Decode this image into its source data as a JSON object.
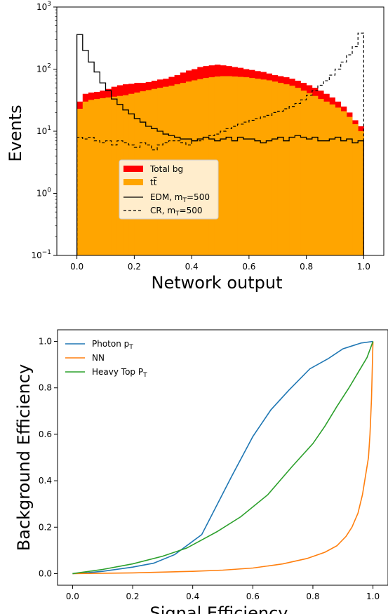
{
  "chart_data": [
    {
      "type": "histogram",
      "yscale": "log",
      "xlabel": "Network output",
      "ylabel": "Events",
      "xlim": [
        -0.07,
        1.07
      ],
      "ylim": [
        0.1,
        1000
      ],
      "x_ticks": [
        "0.0",
        "0.2",
        "0.4",
        "0.6",
        "0.8",
        "1.0"
      ],
      "y_ticks": [
        {
          "base": "10",
          "exp": "−1"
        },
        {
          "base": "10",
          "exp": "0"
        },
        {
          "base": "10",
          "exp": "1"
        },
        {
          "base": "10",
          "exp": "2"
        },
        {
          "base": "10",
          "exp": "3"
        }
      ],
      "bins": {
        "start": 0.0,
        "end": 1.0,
        "count": 50
      },
      "legend": {
        "position": "center-left",
        "entries": [
          {
            "kind": "patch",
            "color": "#ff0000",
            "label": "Total bg"
          },
          {
            "kind": "patch",
            "color": "#ffa500",
            "label_main": "t",
            "label_bar": "t"
          },
          {
            "kind": "line",
            "dash": "solid",
            "label_main": "EDM, m",
            "label_sub": "T",
            "label_end": "=500"
          },
          {
            "kind": "line",
            "dash": "dashed",
            "label_main": "CR, m",
            "label_sub": "T",
            "label_end": "=500"
          }
        ]
      },
      "series": [
        {
          "name": "Total bg",
          "color": "#ff0000",
          "values": [
            30,
            40,
            42,
            43,
            45,
            48,
            52,
            55,
            57,
            58,
            60,
            60,
            62,
            65,
            68,
            70,
            75,
            80,
            88,
            95,
            100,
            108,
            112,
            115,
            118,
            115,
            112,
            108,
            105,
            100,
            97,
            93,
            90,
            85,
            80,
            77,
            74,
            70,
            65,
            60,
            55,
            50,
            45,
            40,
            35,
            30,
            25,
            20,
            15,
            12
          ]
        },
        {
          "name": "tt̄",
          "color": "#ffa500",
          "values": [
            23,
            30,
            32,
            33,
            34,
            35,
            36,
            37,
            38,
            40,
            42,
            44,
            46,
            48,
            50,
            52,
            54,
            57,
            60,
            63,
            66,
            69,
            72,
            74,
            76,
            77,
            77,
            76,
            75,
            74,
            72,
            70,
            68,
            66,
            63,
            60,
            57,
            54,
            50,
            45,
            41,
            37,
            33,
            30,
            27,
            24,
            21,
            17,
            13,
            10
          ]
        },
        {
          "name": "EDM, mT=500",
          "color": "#000000",
          "dash": "solid",
          "values": [
            360,
            200,
            130,
            90,
            60,
            45,
            33,
            27,
            22,
            19,
            16,
            14,
            12,
            11,
            10,
            9,
            8.5,
            8,
            7.5,
            7.5,
            7,
            7.5,
            8,
            7.5,
            7,
            7.5,
            8,
            7,
            8,
            7.5,
            7.5,
            7,
            6.5,
            7,
            7.5,
            8,
            7,
            8,
            8.5,
            8,
            7.5,
            8,
            7,
            7,
            7.5,
            8,
            7,
            7.5,
            6.5,
            7
          ]
        },
        {
          "name": "CR, mT=500",
          "color": "#000000",
          "dash": "dashed",
          "values": [
            8,
            7.5,
            8,
            7,
            6.5,
            7,
            6,
            7,
            6.5,
            6,
            5.5,
            6.5,
            6,
            5,
            6,
            6.5,
            7,
            7,
            6.5,
            6,
            7,
            7,
            8,
            8.5,
            9,
            10,
            11,
            12,
            13,
            14,
            15,
            16,
            17,
            18,
            20,
            21,
            23,
            25,
            28,
            32,
            38,
            45,
            55,
            65,
            80,
            100,
            130,
            170,
            230,
            380
          ]
        }
      ]
    },
    {
      "type": "line",
      "xlabel": "Signal Efficiency",
      "ylabel": "Background Efficiency",
      "xlim": [
        -0.05,
        1.05
      ],
      "ylim": [
        -0.05,
        1.05
      ],
      "x_ticks": [
        "0.0",
        "0.2",
        "0.4",
        "0.6",
        "0.8",
        "1.0"
      ],
      "y_ticks": [
        "0.0",
        "0.2",
        "0.4",
        "0.6",
        "0.8",
        "1.0"
      ],
      "legend": {
        "position": "top-left"
      },
      "series": [
        {
          "name_main": "Photon p",
          "name_sub": "T",
          "color": "#1f77b4",
          "points": [
            [
              0,
              0
            ],
            [
              0.05,
              0.004
            ],
            [
              0.1,
              0.01
            ],
            [
              0.2,
              0.028
            ],
            [
              0.27,
              0.045
            ],
            [
              0.34,
              0.082
            ],
            [
              0.43,
              0.168
            ],
            [
              0.53,
              0.42
            ],
            [
              0.6,
              0.59
            ],
            [
              0.66,
              0.705
            ],
            [
              0.72,
              0.79
            ],
            [
              0.79,
              0.882
            ],
            [
              0.85,
              0.925
            ],
            [
              0.9,
              0.968
            ],
            [
              0.96,
              0.993
            ],
            [
              1,
              1
            ]
          ]
        },
        {
          "name_main": "NN",
          "name_sub": "",
          "color": "#ff7f0e",
          "points": [
            [
              0,
              0
            ],
            [
              0.2,
              0.003
            ],
            [
              0.4,
              0.01
            ],
            [
              0.5,
              0.015
            ],
            [
              0.6,
              0.024
            ],
            [
              0.7,
              0.042
            ],
            [
              0.78,
              0.065
            ],
            [
              0.84,
              0.092
            ],
            [
              0.88,
              0.12
            ],
            [
              0.91,
              0.16
            ],
            [
              0.93,
              0.2
            ],
            [
              0.95,
              0.26
            ],
            [
              0.965,
              0.34
            ],
            [
              0.975,
              0.42
            ],
            [
              0.985,
              0.5
            ],
            [
              0.99,
              0.6
            ],
            [
              0.995,
              0.75
            ],
            [
              1,
              1
            ]
          ]
        },
        {
          "name_main": "Heavy Top P",
          "name_sub": "T",
          "color": "#2ca02c",
          "points": [
            [
              0,
              0
            ],
            [
              0.1,
              0.018
            ],
            [
              0.2,
              0.042
            ],
            [
              0.3,
              0.075
            ],
            [
              0.38,
              0.11
            ],
            [
              0.48,
              0.18
            ],
            [
              0.56,
              0.245
            ],
            [
              0.65,
              0.34
            ],
            [
              0.73,
              0.46
            ],
            [
              0.8,
              0.56
            ],
            [
              0.84,
              0.635
            ],
            [
              0.88,
              0.72
            ],
            [
              0.92,
              0.8
            ],
            [
              0.95,
              0.865
            ],
            [
              0.98,
              0.93
            ],
            [
              1,
              1
            ]
          ]
        }
      ]
    }
  ]
}
